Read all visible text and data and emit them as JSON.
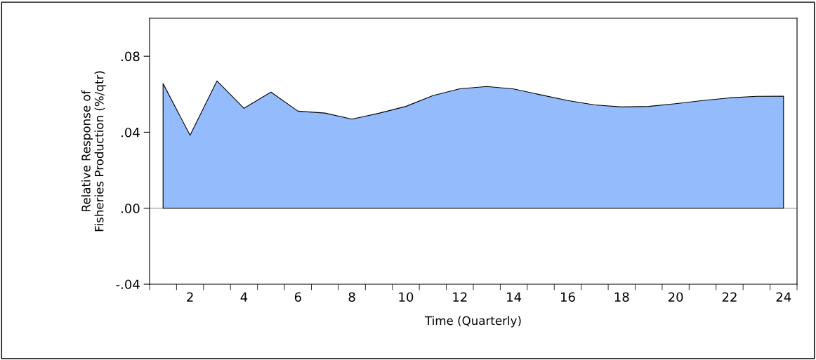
{
  "chart_data": {
    "type": "area",
    "xlabel": "Time (Quarterly)",
    "ylabel": "Relative Response of\nFisheries Production (%/qtr)",
    "categories": [
      null,
      "2",
      null,
      "4",
      null,
      "6",
      null,
      "8",
      null,
      "10",
      null,
      "12",
      null,
      "14",
      null,
      "16",
      null,
      "18",
      null,
      "20",
      null,
      "22",
      null,
      "24"
    ],
    "series": [
      {
        "color": "#94bcfd",
        "values": [
          0.0656,
          0.0384,
          0.067,
          0.0526,
          0.0611,
          0.0511,
          0.0501,
          0.0469,
          0.05,
          0.0536,
          0.0593,
          0.0629,
          0.0641,
          0.0628,
          0.0597,
          0.0567,
          0.0544,
          0.0533,
          0.0536,
          0.055,
          0.0567,
          0.0581,
          0.0589,
          0.059
        ]
      }
    ],
    "ylim": [
      -0.04,
      0.1
    ],
    "yticks": [
      {
        "value": -0.04,
        "label": "-.04"
      },
      {
        "value": 0.0,
        "label": ".00"
      },
      {
        "value": 0.04,
        "label": ".04"
      },
      {
        "value": 0.08,
        "label": ".08"
      }
    ],
    "ref_lines": [
      {
        "axis": "y",
        "value": 0,
        "color": "#808080"
      }
    ],
    "grid": false,
    "legend": false
  }
}
